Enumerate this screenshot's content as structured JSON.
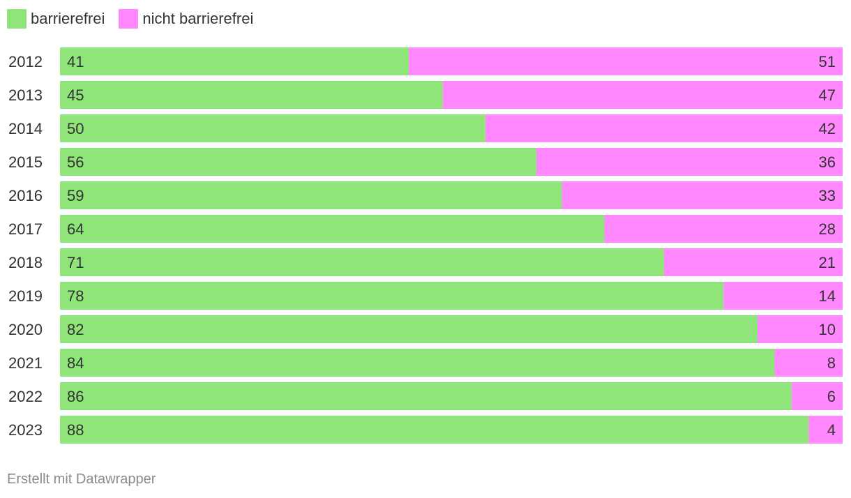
{
  "chart_data": {
    "type": "bar",
    "orientation": "horizontal",
    "stacked": true,
    "categories": [
      "2012",
      "2013",
      "2014",
      "2015",
      "2016",
      "2017",
      "2018",
      "2019",
      "2020",
      "2021",
      "2022",
      "2023"
    ],
    "series": [
      {
        "name": "barrierefrei",
        "color": "#8fe57a",
        "values": [
          41,
          45,
          50,
          56,
          59,
          64,
          71,
          78,
          82,
          84,
          86,
          88
        ]
      },
      {
        "name": "nicht barrierefrei",
        "color": "#ff88ff",
        "values": [
          51,
          47,
          42,
          36,
          33,
          28,
          21,
          14,
          10,
          8,
          6,
          4
        ]
      }
    ],
    "legend_position": "top-left",
    "grid": false
  },
  "footer": {
    "credit": "Erstellt mit Datawrapper"
  }
}
